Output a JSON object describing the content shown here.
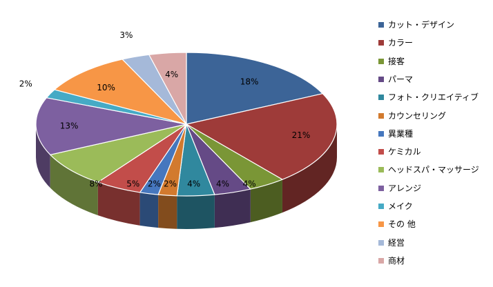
{
  "chart_data": {
    "type": "pie",
    "title": "",
    "legend_position": "right",
    "three_d": true,
    "categories": [
      "カット・デザイン",
      "カラー",
      "接客",
      "パーマ",
      "フォト・クリエイティブ",
      "カウンセリング",
      "異業種",
      "ケミカル",
      "ヘッドスパ・マッサージ",
      "アレンジ",
      "メイク",
      "その 他",
      "経営",
      "商材"
    ],
    "values": [
      18,
      21,
      4,
      4,
      4,
      2,
      2,
      5,
      8,
      13,
      2,
      10,
      3,
      4
    ],
    "labels": [
      "18%",
      "21%",
      "4%",
      "4%",
      "4%",
      "2%",
      "2%",
      "5%",
      "8%",
      "13%",
      "2%",
      "10%",
      "3%",
      "4%"
    ],
    "colors": [
      "#3C6497",
      "#9E3B39",
      "#7A9636",
      "#654A86",
      "#30889E",
      "#D27A2E",
      "#4677BE",
      "#C24D4A",
      "#9BBB59",
      "#7D60A0",
      "#46AAC5",
      "#F79646",
      "#A5B9D9",
      "#D9A7A6"
    ]
  }
}
